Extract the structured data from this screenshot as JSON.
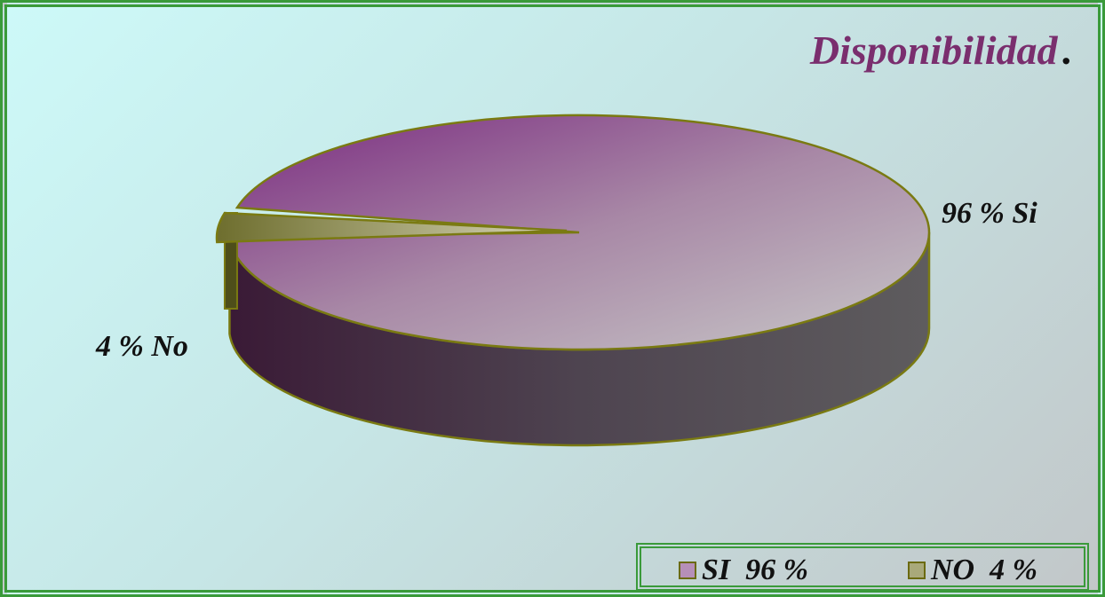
{
  "chart_data": {
    "type": "pie",
    "title": "Disponibilidad",
    "title_suffix": ".",
    "slices": [
      {
        "label": "96 % Si",
        "value": 96,
        "color": "#8a3a86"
      },
      {
        "label": "4 % No",
        "value": 4,
        "color": "#8a8a3a"
      }
    ],
    "legend": [
      {
        "label": "SI  96 %",
        "color": "#b68fb8"
      },
      {
        "label": "NO  4 %",
        "color": "#a9a97a"
      }
    ],
    "legend_position": "bottom-right",
    "style": "3d"
  }
}
